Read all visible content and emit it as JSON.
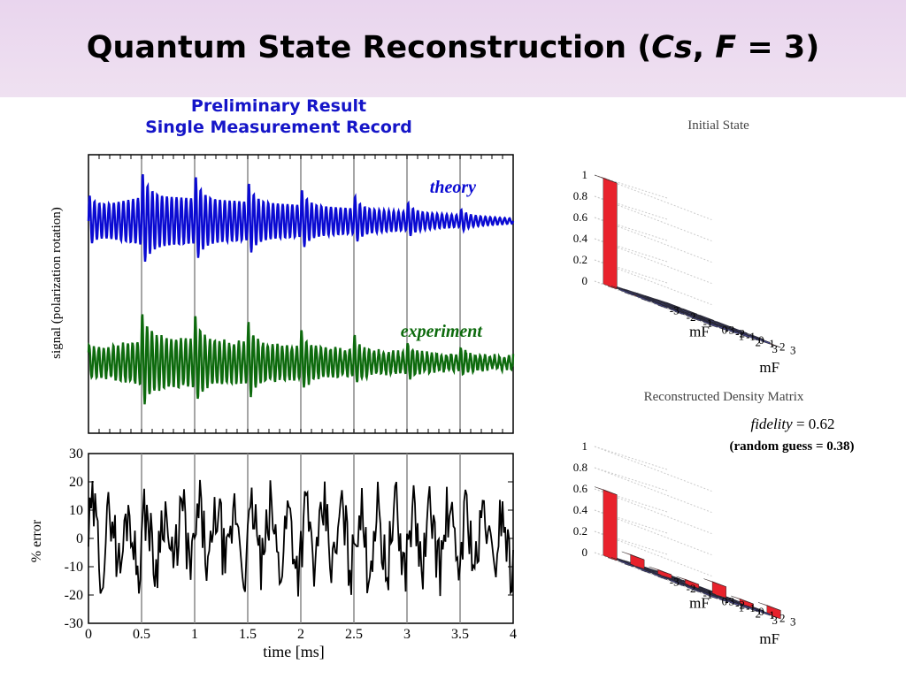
{
  "slide": {
    "title_main": "Quantum State Reconstruction (",
    "title_italic_1": "Cs",
    "title_mid": ", ",
    "title_italic_2": "F",
    "title_end": " = 3)",
    "subtitle_line1": "Preliminary Result",
    "subtitle_line2": "Single Measurement Record"
  },
  "colors": {
    "theory": "#0a0ad2",
    "experiment": "#0d6a0d",
    "error": "#000000",
    "bar_red": "#e8222c",
    "bar_blue": "#4a4a94"
  },
  "chart_data": [
    {
      "type": "line",
      "title": "",
      "ylabel": "signal (polarization rotation)",
      "xlim": [
        0,
        4
      ],
      "x_gridlines": [
        0.5,
        1,
        1.5,
        2,
        2.5,
        3,
        3.5
      ],
      "series": [
        {
          "name": "theory",
          "label": "theory",
          "amplitude_envelope": [
            0.5,
            1.0,
            0.85,
            0.7,
            0.55,
            0.4,
            0.25,
            0.1
          ]
        },
        {
          "name": "experiment",
          "label": "experiment",
          "amplitude_envelope": [
            0.35,
            1.0,
            0.85,
            0.7,
            0.55,
            0.42,
            0.3,
            0.25
          ]
        }
      ]
    },
    {
      "type": "line",
      "xlabel": "time [ms]",
      "ylabel": "% error",
      "xlim": [
        0,
        4
      ],
      "ylim": [
        -30,
        30
      ],
      "xticks": [
        "0",
        "0.5",
        "1",
        "1.5",
        "2",
        "2.5",
        "3",
        "3.5",
        "4"
      ],
      "yticks": [
        "30",
        "20",
        "10",
        "0",
        "-10",
        "-20",
        "-30"
      ],
      "series": [
        {
          "name": "% error",
          "typical_range": [
            -15,
            15
          ]
        }
      ]
    },
    {
      "type": "bar3d",
      "title": "Initial State",
      "xlabel": "mF",
      "ylabel": "mF",
      "axis_ticks": [
        "-3",
        "-2",
        "-1",
        "0",
        "1",
        "2",
        "3"
      ],
      "zticks": [
        "0",
        "0.2",
        "0.4",
        "0.6",
        "0.8",
        "1"
      ],
      "diagonal": [
        1.0,
        0,
        0,
        0,
        0,
        0,
        0
      ]
    },
    {
      "type": "bar3d",
      "title": "Reconstructed Density Matrix",
      "xlabel": "mF",
      "ylabel": "mF",
      "axis_ticks": [
        "-3",
        "-2",
        "-1",
        "0",
        "1",
        "2",
        "3"
      ],
      "zticks": [
        "0",
        "0.2",
        "0.4",
        "0.6",
        "0.8",
        "1"
      ],
      "diagonal": [
        0.62,
        0.1,
        0.05,
        0.05,
        0.12,
        0.05,
        0.08
      ]
    }
  ],
  "fidelity": {
    "label": "fidelity",
    "value": " = 0.62",
    "note": "(random guess = 0.38)"
  },
  "labels": {
    "theory": "theory",
    "experiment": "experiment"
  }
}
